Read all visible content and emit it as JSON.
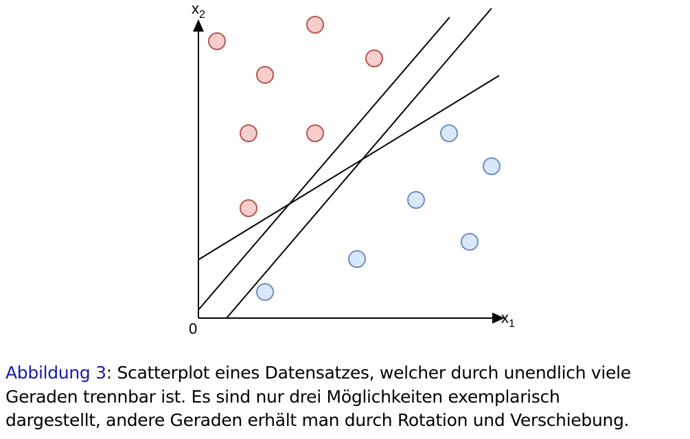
{
  "axes": {
    "y_label": {
      "base": "x",
      "sub": "2"
    },
    "x_label": {
      "base": "x",
      "sub": "1"
    },
    "origin": "0"
  },
  "caption": {
    "label": "Abbildung 3",
    "lines": [
      ": Scatterplot eines Datensatzes, welcher durch unendlich viele",
      "Geraden trennbar ist. Es sind nur drei Möglichkeiten exemplarisch",
      "dargestellt, andere Geraden erhält man durch Rotation und Verschiebung."
    ]
  }
}
